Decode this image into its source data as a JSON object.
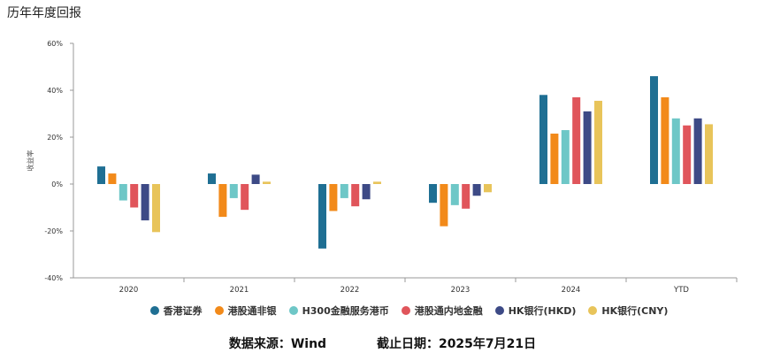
{
  "title": "历年年度回报",
  "footer": {
    "source": "数据来源：Wind",
    "cutoff": "截止日期：2025年7月21日"
  },
  "chart_data": {
    "type": "bar",
    "ylabel": "收益率",
    "ylim": [
      -40,
      60
    ],
    "yticks": [
      -40,
      -20,
      0,
      20,
      40,
      60
    ],
    "ytick_labels": [
      "-40%",
      "-20%",
      "0%",
      "20%",
      "40%",
      "60%"
    ],
    "grid": false,
    "legend_position": "bottom",
    "categories": [
      "2020",
      "2021",
      "2022",
      "2023",
      "2024",
      "YTD"
    ],
    "series": [
      {
        "name": "香港证券",
        "color": "#1f6f93",
        "values": [
          7.5,
          4.5,
          -27.5,
          -8,
          38,
          46
        ]
      },
      {
        "name": "港股通非银",
        "color": "#f28a1a",
        "values": [
          4.5,
          -14,
          -11.5,
          -18,
          21.5,
          37
        ]
      },
      {
        "name": "H300金融服务港币",
        "color": "#6ec7c7",
        "values": [
          -7,
          -6,
          -6,
          -9,
          23,
          28
        ]
      },
      {
        "name": "港股通内地金融",
        "color": "#e0555b",
        "values": [
          -10,
          -11,
          -9.5,
          -10.5,
          37,
          25
        ]
      },
      {
        "name": "HK银行(HKD)",
        "color": "#3d4a86",
        "values": [
          -15.5,
          4,
          -6.5,
          -5,
          31,
          28
        ]
      },
      {
        "name": "HK银行(CNY)",
        "color": "#e8c45a",
        "values": [
          -20.5,
          1,
          1,
          -3.5,
          35.5,
          25.5
        ]
      }
    ]
  }
}
